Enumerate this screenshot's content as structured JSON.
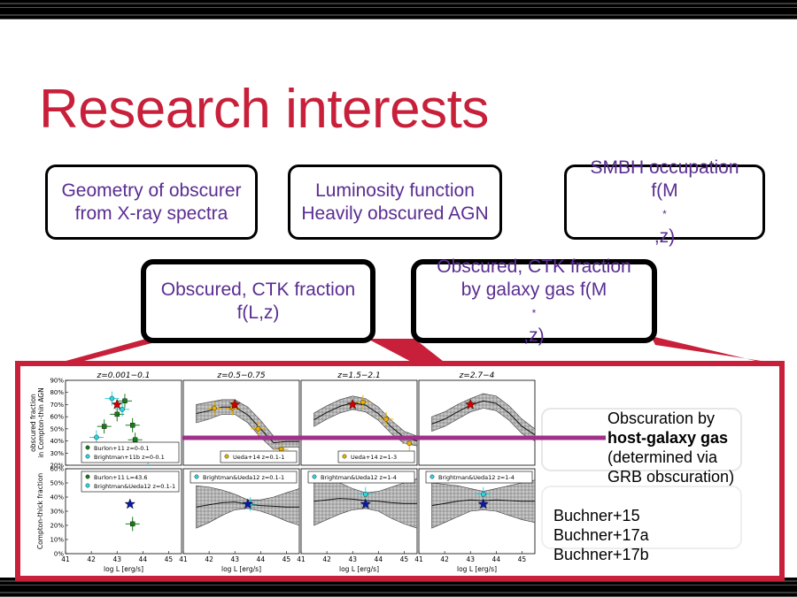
{
  "slide": {
    "title": "Research interests"
  },
  "boxes": [
    {
      "line1": "Geometry of obscurer",
      "line2": "from X-ray spectra"
    },
    {
      "line1": "Luminosity function",
      "line2": "Heavily obscured AGN"
    },
    {
      "line1": "SMBH occupation",
      "line2_pre": "f(M",
      "line2_sub": "*",
      "line2_post": ",z)"
    },
    {
      "line1": "Obscured, CTK fraction",
      "line2": "f(L,z)"
    },
    {
      "line1": "Obscured, CTK fraction",
      "line2_pre": "by galaxy gas f(M",
      "line2_sub": "*",
      "line2_post": ",z)"
    }
  ],
  "notes": {
    "line1": "Obscuration by",
    "line2": "host-galaxy gas",
    "line3": "(determined via",
    "line4": "GRB obscuration)",
    "refs": [
      "Buchner+15",
      "Buchner+17a",
      "Buchner+17b"
    ]
  },
  "colors": {
    "title": "#c8203a",
    "box_text": "#5a2d91",
    "frame": "#c8203a",
    "purple_line": "#a0308a"
  },
  "figure": {
    "panel_titles": [
      "z=0.001−0.1",
      "z=0.5−0.75",
      "z=1.5−2.1",
      "z=2.7−4"
    ],
    "top_ylabel_1": "obscured fraction",
    "top_ylabel_2": "in Compton-thin AGN",
    "bottom_ylabel": "Compton-thick fraction",
    "xlabel": "log L [erg/s]",
    "top_yticks": [
      "90%",
      "80%",
      "70%",
      "60%",
      "50%",
      "40%",
      "30%",
      "20%"
    ],
    "bottom_yticks": [
      "60%",
      "50%",
      "40%",
      "30%",
      "20%",
      "10%",
      "0%"
    ],
    "xticks": [
      "41",
      "42",
      "43",
      "44",
      "45"
    ],
    "top_legends": [
      [
        "Burlon+11 z=0-0.1",
        "Brightman+11b z=0-0.1"
      ],
      [
        "Ueda+14 z=0.1-1"
      ],
      [
        "Ueda+14 z=1-3"
      ],
      []
    ],
    "bottom_legends": [
      [
        "Burlon+11 L=43.6",
        "Brightman&Ueda12 z=0.1-1"
      ],
      [
        "Brightman&Ueda12 z=0.1-1"
      ],
      [
        "Brightman&Ueda12 z=1-4"
      ],
      [
        "Brightman&Ueda12 z=1-4"
      ]
    ]
  },
  "chart_data": {
    "type": "scatter",
    "x_range": [
      41,
      45.5
    ],
    "top_ylim": [
      0.2,
      0.9
    ],
    "bottom_ylim": [
      0.0,
      0.6
    ],
    "panels_top": [
      {
        "band_x": [],
        "band_lo": [],
        "band_hi": [],
        "star": {
          "x": 43.0,
          "y": 0.7
        },
        "points": [
          {
            "x": 42.5,
            "y": 0.52,
            "c": "green"
          },
          {
            "x": 43.0,
            "y": 0.62,
            "c": "green"
          },
          {
            "x": 43.3,
            "y": 0.73,
            "c": "green"
          },
          {
            "x": 43.6,
            "y": 0.53,
            "c": "green"
          },
          {
            "x": 43.7,
            "y": 0.41,
            "c": "green"
          },
          {
            "x": 42.8,
            "y": 0.75,
            "c": "cyan"
          },
          {
            "x": 43.2,
            "y": 0.66,
            "c": "cyan"
          },
          {
            "x": 42.2,
            "y": 0.43,
            "c": "cyan"
          },
          {
            "x": 44.2,
            "y": 0.25,
            "c": "cyan"
          }
        ]
      },
      {
        "band_x": [
          41.5,
          42,
          42.5,
          43,
          43.5,
          44,
          44.5,
          45,
          45.5
        ],
        "band_lo": [
          0.55,
          0.58,
          0.62,
          0.62,
          0.55,
          0.43,
          0.33,
          0.35,
          0.35
        ],
        "band_hi": [
          0.7,
          0.72,
          0.74,
          0.74,
          0.68,
          0.57,
          0.44,
          0.44,
          0.44
        ],
        "star": {
          "x": 43.0,
          "y": 0.7
        },
        "points": [
          {
            "x": 42.2,
            "y": 0.67,
            "c": "gold"
          },
          {
            "x": 42.9,
            "y": 0.67,
            "c": "gold"
          },
          {
            "x": 43.9,
            "y": 0.5,
            "c": "gold"
          },
          {
            "x": 44.8,
            "y": 0.33,
            "c": "gold"
          }
        ]
      },
      {
        "band_x": [
          41.5,
          42,
          42.5,
          43,
          43.5,
          44,
          44.5,
          45,
          45.5
        ],
        "band_lo": [
          0.52,
          0.58,
          0.63,
          0.66,
          0.64,
          0.57,
          0.46,
          0.38,
          0.36
        ],
        "band_hi": [
          0.63,
          0.69,
          0.74,
          0.77,
          0.75,
          0.68,
          0.57,
          0.48,
          0.44
        ],
        "star": {
          "x": 43.0,
          "y": 0.7
        },
        "points": [
          {
            "x": 43.4,
            "y": 0.72,
            "c": "gold"
          },
          {
            "x": 44.3,
            "y": 0.58,
            "c": "gold"
          },
          {
            "x": 45.2,
            "y": 0.38,
            "c": "gold"
          }
        ]
      },
      {
        "band_x": [
          41.5,
          42,
          42.5,
          43,
          43.5,
          44,
          44.5,
          45,
          45.5
        ],
        "band_lo": [
          0.48,
          0.52,
          0.58,
          0.64,
          0.67,
          0.65,
          0.57,
          0.46,
          0.4
        ],
        "band_hi": [
          0.6,
          0.64,
          0.7,
          0.75,
          0.79,
          0.77,
          0.69,
          0.58,
          0.5
        ],
        "star": {
          "x": 43.0,
          "y": 0.7
        },
        "points": []
      }
    ],
    "panels_bottom": [
      {
        "band_x": [],
        "band_lo": [],
        "band_hi": [],
        "star": {
          "x": 43.5,
          "y": 0.35
        },
        "points": [
          {
            "x": 43.6,
            "y": 0.21,
            "c": "green"
          }
        ]
      },
      {
        "band_x": [
          41.5,
          42,
          42.5,
          43,
          43.5,
          44,
          44.5,
          45,
          45.5
        ],
        "band_lo": [
          0.18,
          0.22,
          0.27,
          0.31,
          0.32,
          0.3,
          0.27,
          0.23,
          0.2
        ],
        "band_hi": [
          0.48,
          0.47,
          0.45,
          0.42,
          0.38,
          0.38,
          0.4,
          0.43,
          0.46
        ],
        "star": {
          "x": 43.5,
          "y": 0.35
        },
        "points": [
          {
            "x": 43.6,
            "y": 0.35,
            "c": "cyan"
          }
        ]
      },
      {
        "band_x": [
          41.5,
          42,
          42.5,
          43,
          43.5,
          44,
          44.5,
          45,
          45.5
        ],
        "band_lo": [
          0.2,
          0.24,
          0.28,
          0.31,
          0.32,
          0.3,
          0.25,
          0.21,
          0.18
        ],
        "band_hi": [
          0.54,
          0.52,
          0.5,
          0.46,
          0.43,
          0.44,
          0.47,
          0.5,
          0.53
        ],
        "star": {
          "x": 43.5,
          "y": 0.35
        },
        "points": [
          {
            "x": 43.5,
            "y": 0.42,
            "c": "cyan"
          }
        ]
      },
      {
        "band_x": [
          41.5,
          42,
          42.5,
          43,
          43.5,
          44,
          44.5,
          45,
          45.5
        ],
        "band_lo": [
          0.18,
          0.22,
          0.26,
          0.3,
          0.31,
          0.3,
          0.27,
          0.24,
          0.22
        ],
        "band_hi": [
          0.5,
          0.49,
          0.48,
          0.46,
          0.44,
          0.46,
          0.48,
          0.5,
          0.52
        ],
        "star": {
          "x": 43.5,
          "y": 0.35
        },
        "points": [
          {
            "x": 43.5,
            "y": 0.42,
            "c": "cyan"
          }
        ]
      }
    ]
  }
}
